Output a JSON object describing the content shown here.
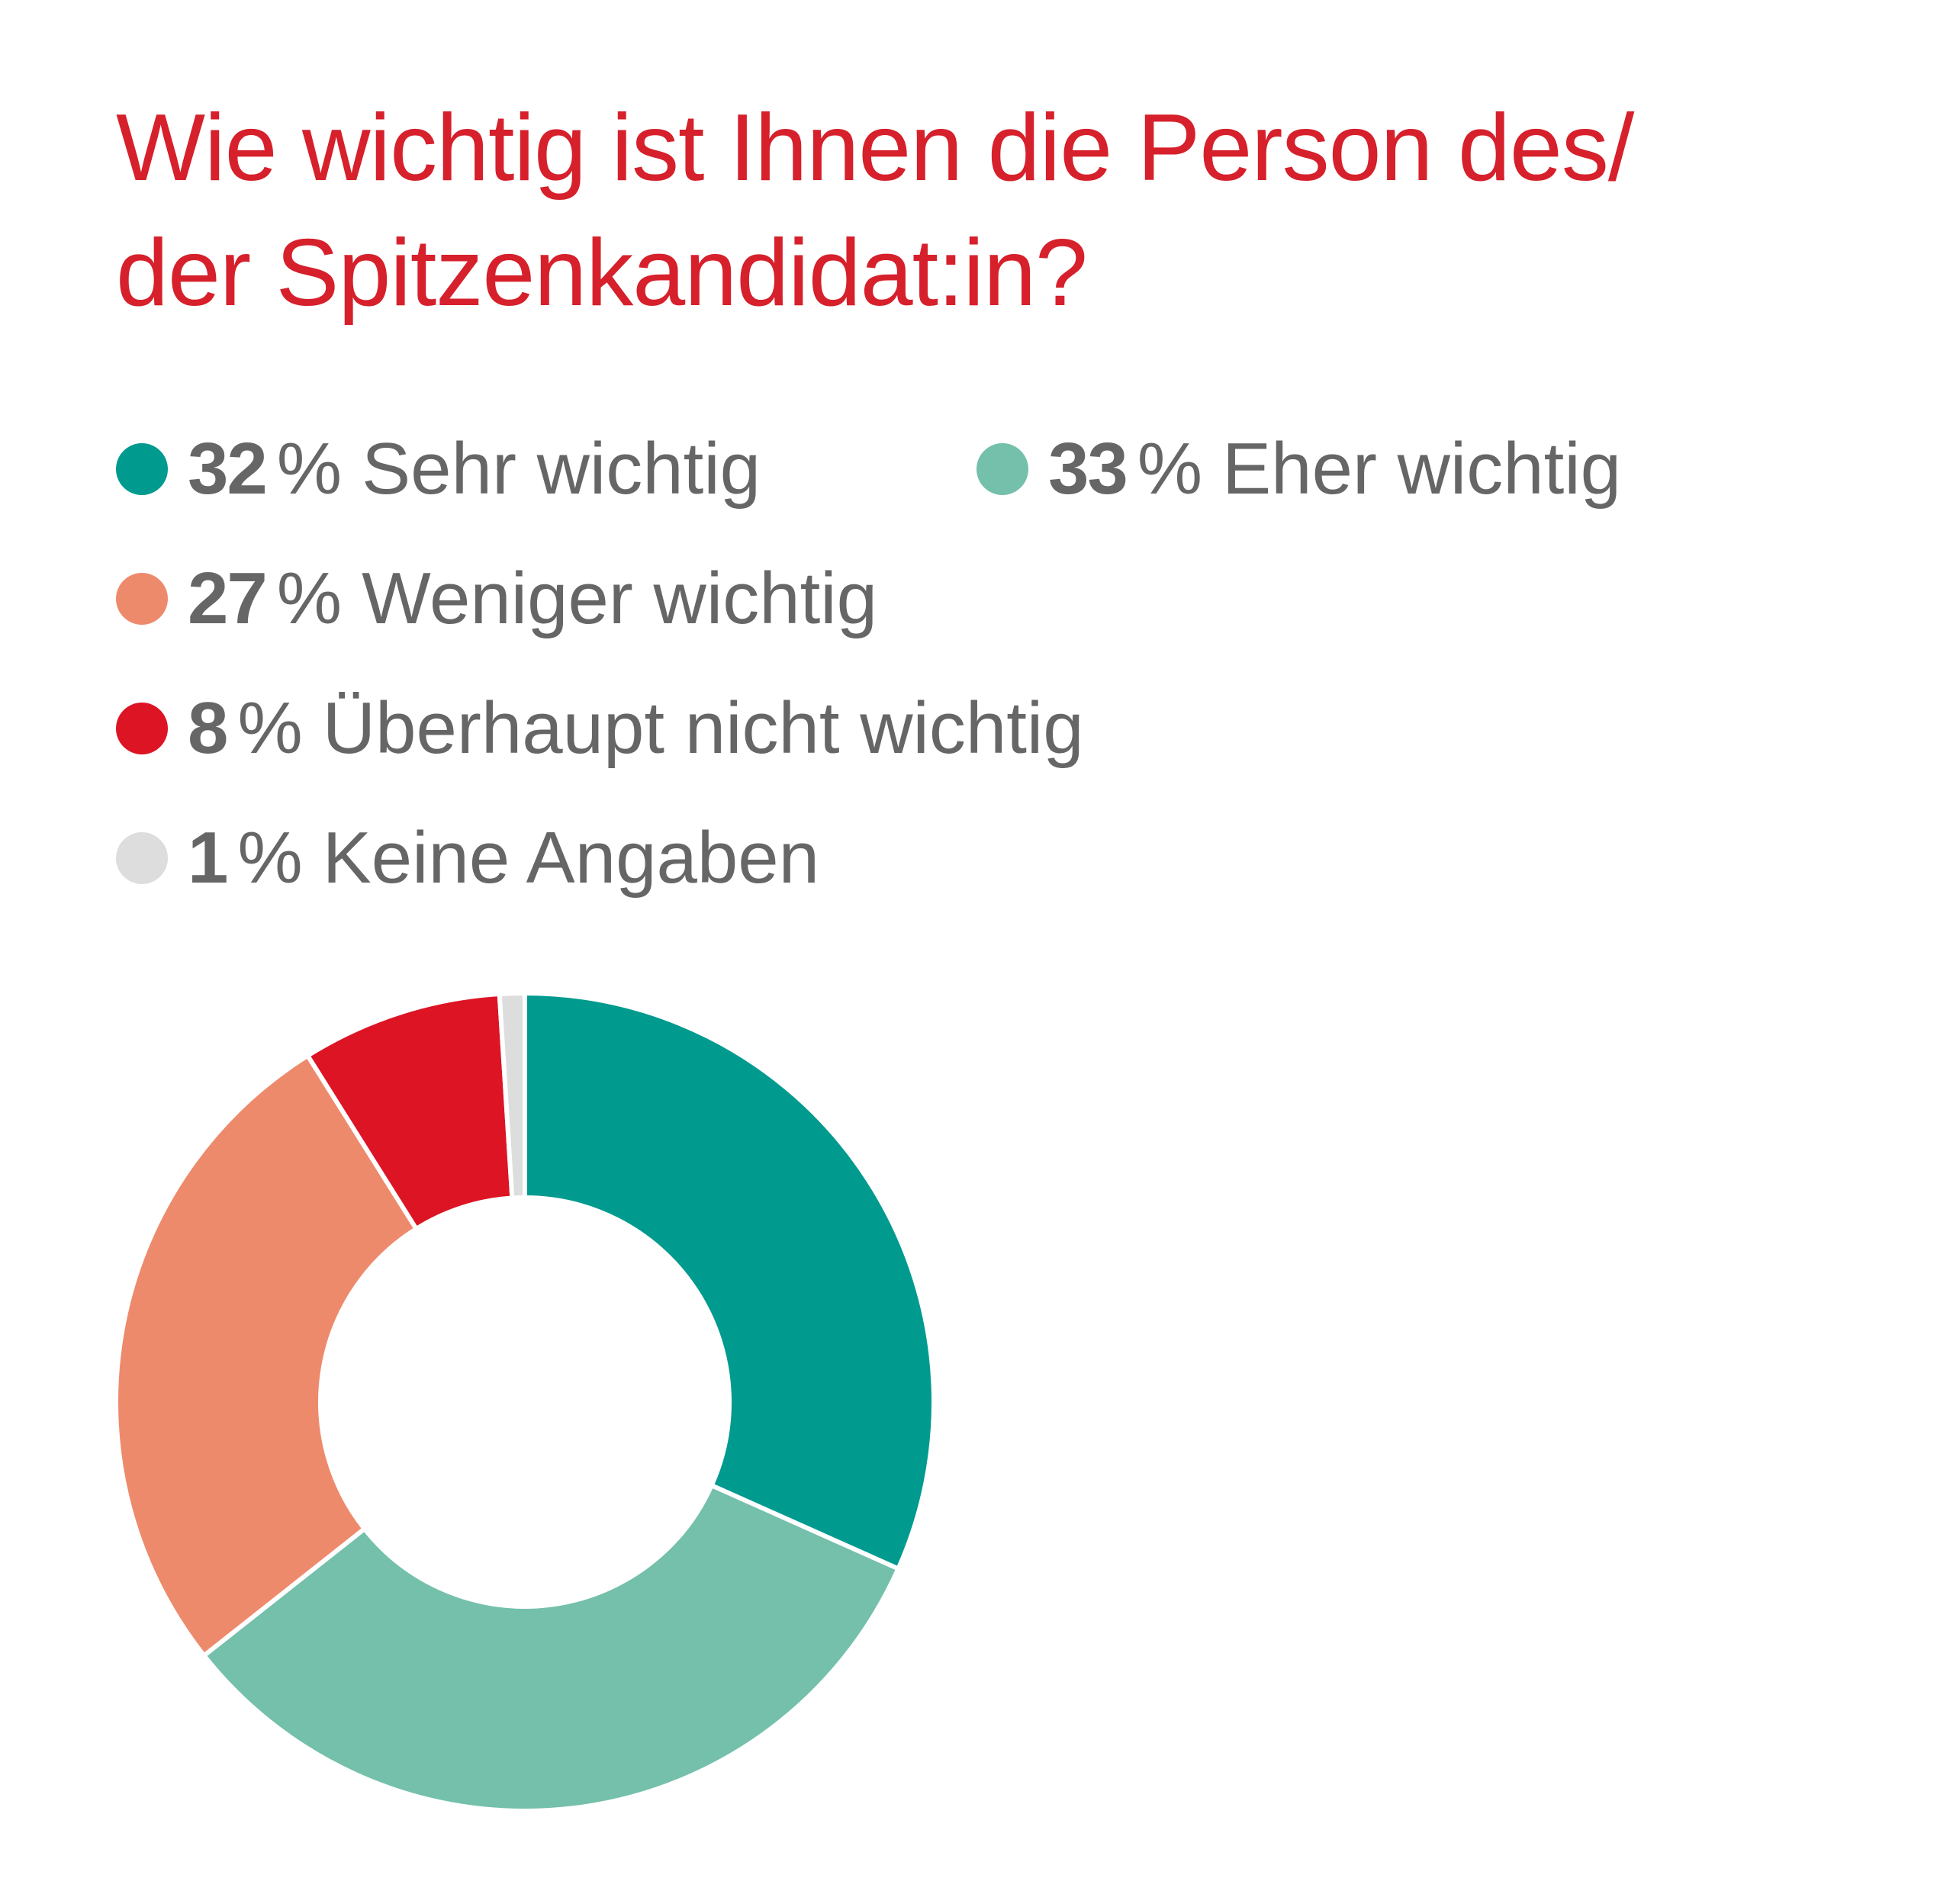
{
  "chart_data": {
    "type": "pie",
    "title": "Wie wichtig ist Ihnen die Person des/ der Spitzenkandidat:in?",
    "title_lines": [
      "Wie wichtig ist Ihnen die Person des/",
      "der Spitzenkandidat:in?"
    ],
    "donut": true,
    "series": [
      {
        "name": "Sehr wichtig",
        "value": 32,
        "pct": "32",
        "color": "#009a8f"
      },
      {
        "name": "Eher wichtig",
        "value": 33,
        "pct": "33",
        "color": "#74c0aa"
      },
      {
        "name": "Weniger wichtig",
        "value": 27,
        "pct": "27",
        "color": "#ee8a6c"
      },
      {
        "name": "Überhaupt nicht wichtig",
        "value": 8,
        "pct": "8",
        "color": "#dc1424"
      },
      {
        "name": "Keine Angaben",
        "value": 1,
        "pct": "1",
        "color": "#dddddd"
      }
    ],
    "unit": "%",
    "title_color": "#d6202b",
    "label_color": "#666666"
  }
}
